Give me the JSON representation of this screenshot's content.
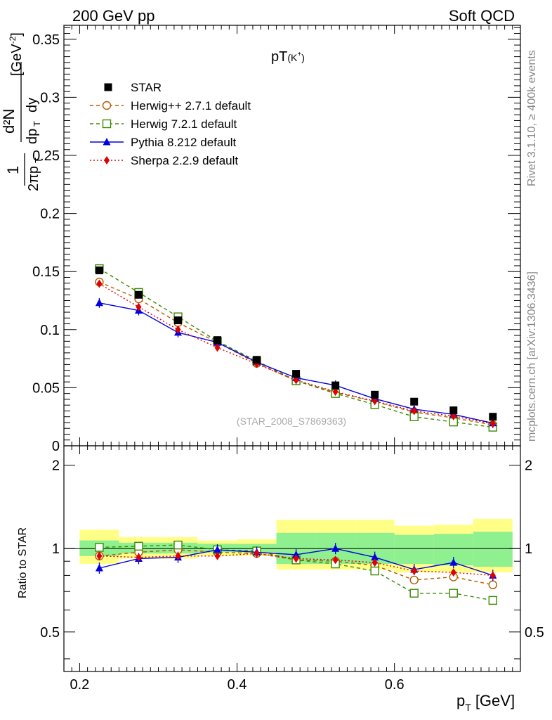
{
  "header": {
    "left": "200 GeV pp",
    "right": "Soft QCD"
  },
  "side": {
    "rivet": "Rivet 3.1.10, ≥ 400k events",
    "mcplots": "mcplots.cern.ch [arXiv:1306.3436]"
  },
  "chart_data": {
    "type": "line",
    "title": "pT(K⁺)",
    "title_main": "pT",
    "title_sub": "(K",
    "title_sup": "+",
    "title_close": ")",
    "watermark": "(STAR_2008_S7869363)",
    "xlabel": "p",
    "xlabel_sub": "T",
    "xlabel_unit": "[GeV]",
    "ylabel": "1/(2π p_T) d²N/(dp_T dy) [GeV⁻²]",
    "ylabel_unit": "[GeV",
    "ylabel_unit_sup": "-2",
    "ylabel_close": "]",
    "ratio_ylabel": "Ratio to STAR",
    "xlim": [
      0.18,
      0.76
    ],
    "ylim": [
      0,
      0.362
    ],
    "ratio_ylim": [
      0.36,
      2.35
    ],
    "x_ticks": [
      "0.2",
      "0.4",
      "0.6"
    ],
    "y_ticks": [
      "0",
      "0.05",
      "0.1",
      "0.15",
      "0.2",
      "0.25",
      "0.3",
      "0.35"
    ],
    "ratio_ticks": [
      "0.5",
      "1",
      "2"
    ],
    "bins": [
      [
        0.2,
        0.25
      ],
      [
        0.25,
        0.3
      ],
      [
        0.3,
        0.35
      ],
      [
        0.35,
        0.4
      ],
      [
        0.4,
        0.45
      ],
      [
        0.45,
        0.5
      ],
      [
        0.5,
        0.55
      ],
      [
        0.55,
        0.6
      ],
      [
        0.6,
        0.65
      ],
      [
        0.65,
        0.7
      ],
      [
        0.7,
        0.75
      ]
    ],
    "x": [
      0.225,
      0.275,
      0.325,
      0.375,
      0.425,
      0.475,
      0.525,
      0.575,
      0.625,
      0.675,
      0.725
    ],
    "reference": {
      "name": "STAR",
      "values": [
        0.151,
        0.13,
        0.108,
        0.091,
        0.074,
        0.062,
        0.052,
        0.044,
        0.038,
        0.0305,
        0.025
      ],
      "band_green": [
        [
          0.94,
          1.07
        ],
        [
          0.96,
          1.05
        ],
        [
          0.96,
          1.05
        ],
        [
          0.97,
          1.04
        ],
        [
          0.97,
          1.04
        ],
        [
          0.88,
          1.14
        ],
        [
          0.88,
          1.14
        ],
        [
          0.88,
          1.14
        ],
        [
          0.88,
          1.12
        ],
        [
          0.87,
          1.13
        ],
        [
          0.86,
          1.15
        ]
      ],
      "band_yellow": [
        [
          0.88,
          1.17
        ],
        [
          0.92,
          1.1
        ],
        [
          0.92,
          1.1
        ],
        [
          0.94,
          1.07
        ],
        [
          0.94,
          1.08
        ],
        [
          0.84,
          1.27
        ],
        [
          0.84,
          1.27
        ],
        [
          0.84,
          1.27
        ],
        [
          0.82,
          1.21
        ],
        [
          0.82,
          1.22
        ],
        [
          0.82,
          1.28
        ]
      ]
    },
    "series": [
      {
        "name": "Herwig++ 2.7.1 default",
        "color": "#b35a00",
        "marker": "open-circle",
        "dash": "5,4",
        "values": [
          0.141,
          0.1265,
          0.106,
          0.089,
          0.071,
          0.056,
          0.046,
          0.038,
          0.029,
          0.024,
          0.018
        ],
        "ratio": [
          0.94,
          0.97,
          0.99,
          0.97,
          0.96,
          0.91,
          0.9,
          0.87,
          0.77,
          0.79,
          0.74
        ]
      },
      {
        "name": "Herwig 7.2.1 default",
        "color": "#3a8a00",
        "marker": "open-square",
        "dash": "5,4",
        "values": [
          0.1525,
          0.132,
          0.111,
          0.09,
          0.073,
          0.056,
          0.045,
          0.0355,
          0.025,
          0.0205,
          0.016
        ],
        "ratio": [
          1.01,
          1.02,
          1.03,
          0.99,
          0.98,
          0.91,
          0.88,
          0.83,
          0.69,
          0.69,
          0.65
        ]
      },
      {
        "name": "Pythia 8.212 default",
        "color": "#0000e0",
        "marker": "filled-triangle",
        "dash": "",
        "values": [
          0.123,
          0.1165,
          0.0975,
          0.089,
          0.072,
          0.0585,
          0.052,
          0.0405,
          0.0315,
          0.027,
          0.0195
        ],
        "ratio": [
          0.85,
          0.92,
          0.93,
          0.99,
          0.97,
          0.95,
          1.0,
          0.93,
          0.84,
          0.89,
          0.8
        ]
      },
      {
        "name": "Sherpa 2.2.9 default",
        "color": "#e00000",
        "marker": "filled-diamond",
        "dash": "2,3",
        "values": [
          0.1395,
          0.1195,
          0.1,
          0.0845,
          0.0705,
          0.0565,
          0.0465,
          0.0385,
          0.03,
          0.0255,
          0.019
        ],
        "ratio": [
          0.94,
          0.93,
          0.94,
          0.94,
          0.96,
          0.92,
          0.91,
          0.89,
          0.83,
          0.82,
          0.8
        ]
      }
    ]
  }
}
